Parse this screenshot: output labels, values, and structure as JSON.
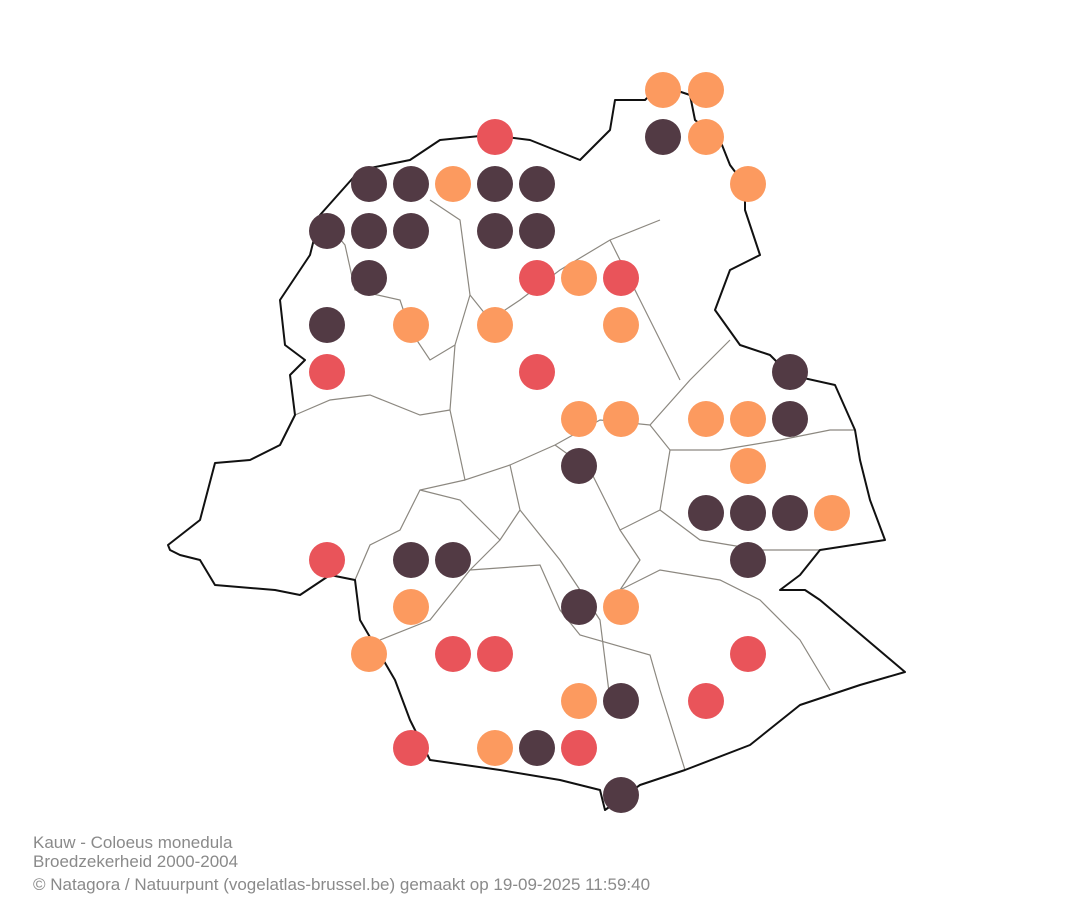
{
  "caption": {
    "title": "Kauw - Coloeus monedula",
    "subtitle": "Broedzekerheid 2000-2004",
    "credit": "© Natagora / Natuurpunt (vogelatlas-brussel.be) gemaakt op 19-09-2025 11:59:40"
  }
}
